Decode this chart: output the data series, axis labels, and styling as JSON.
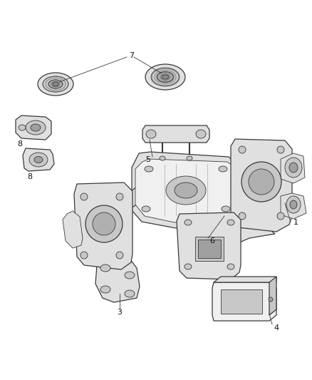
{
  "background_color": "#ffffff",
  "line_color": "#3a3a3a",
  "fill_light": "#f0f0f0",
  "fill_mid": "#e0e0e0",
  "fill_dark": "#c8c8c8",
  "figsize": [
    4.38,
    5.33
  ],
  "dpi": 100,
  "lw_main": 0.9,
  "lw_thin": 0.6,
  "label_fs": 8
}
